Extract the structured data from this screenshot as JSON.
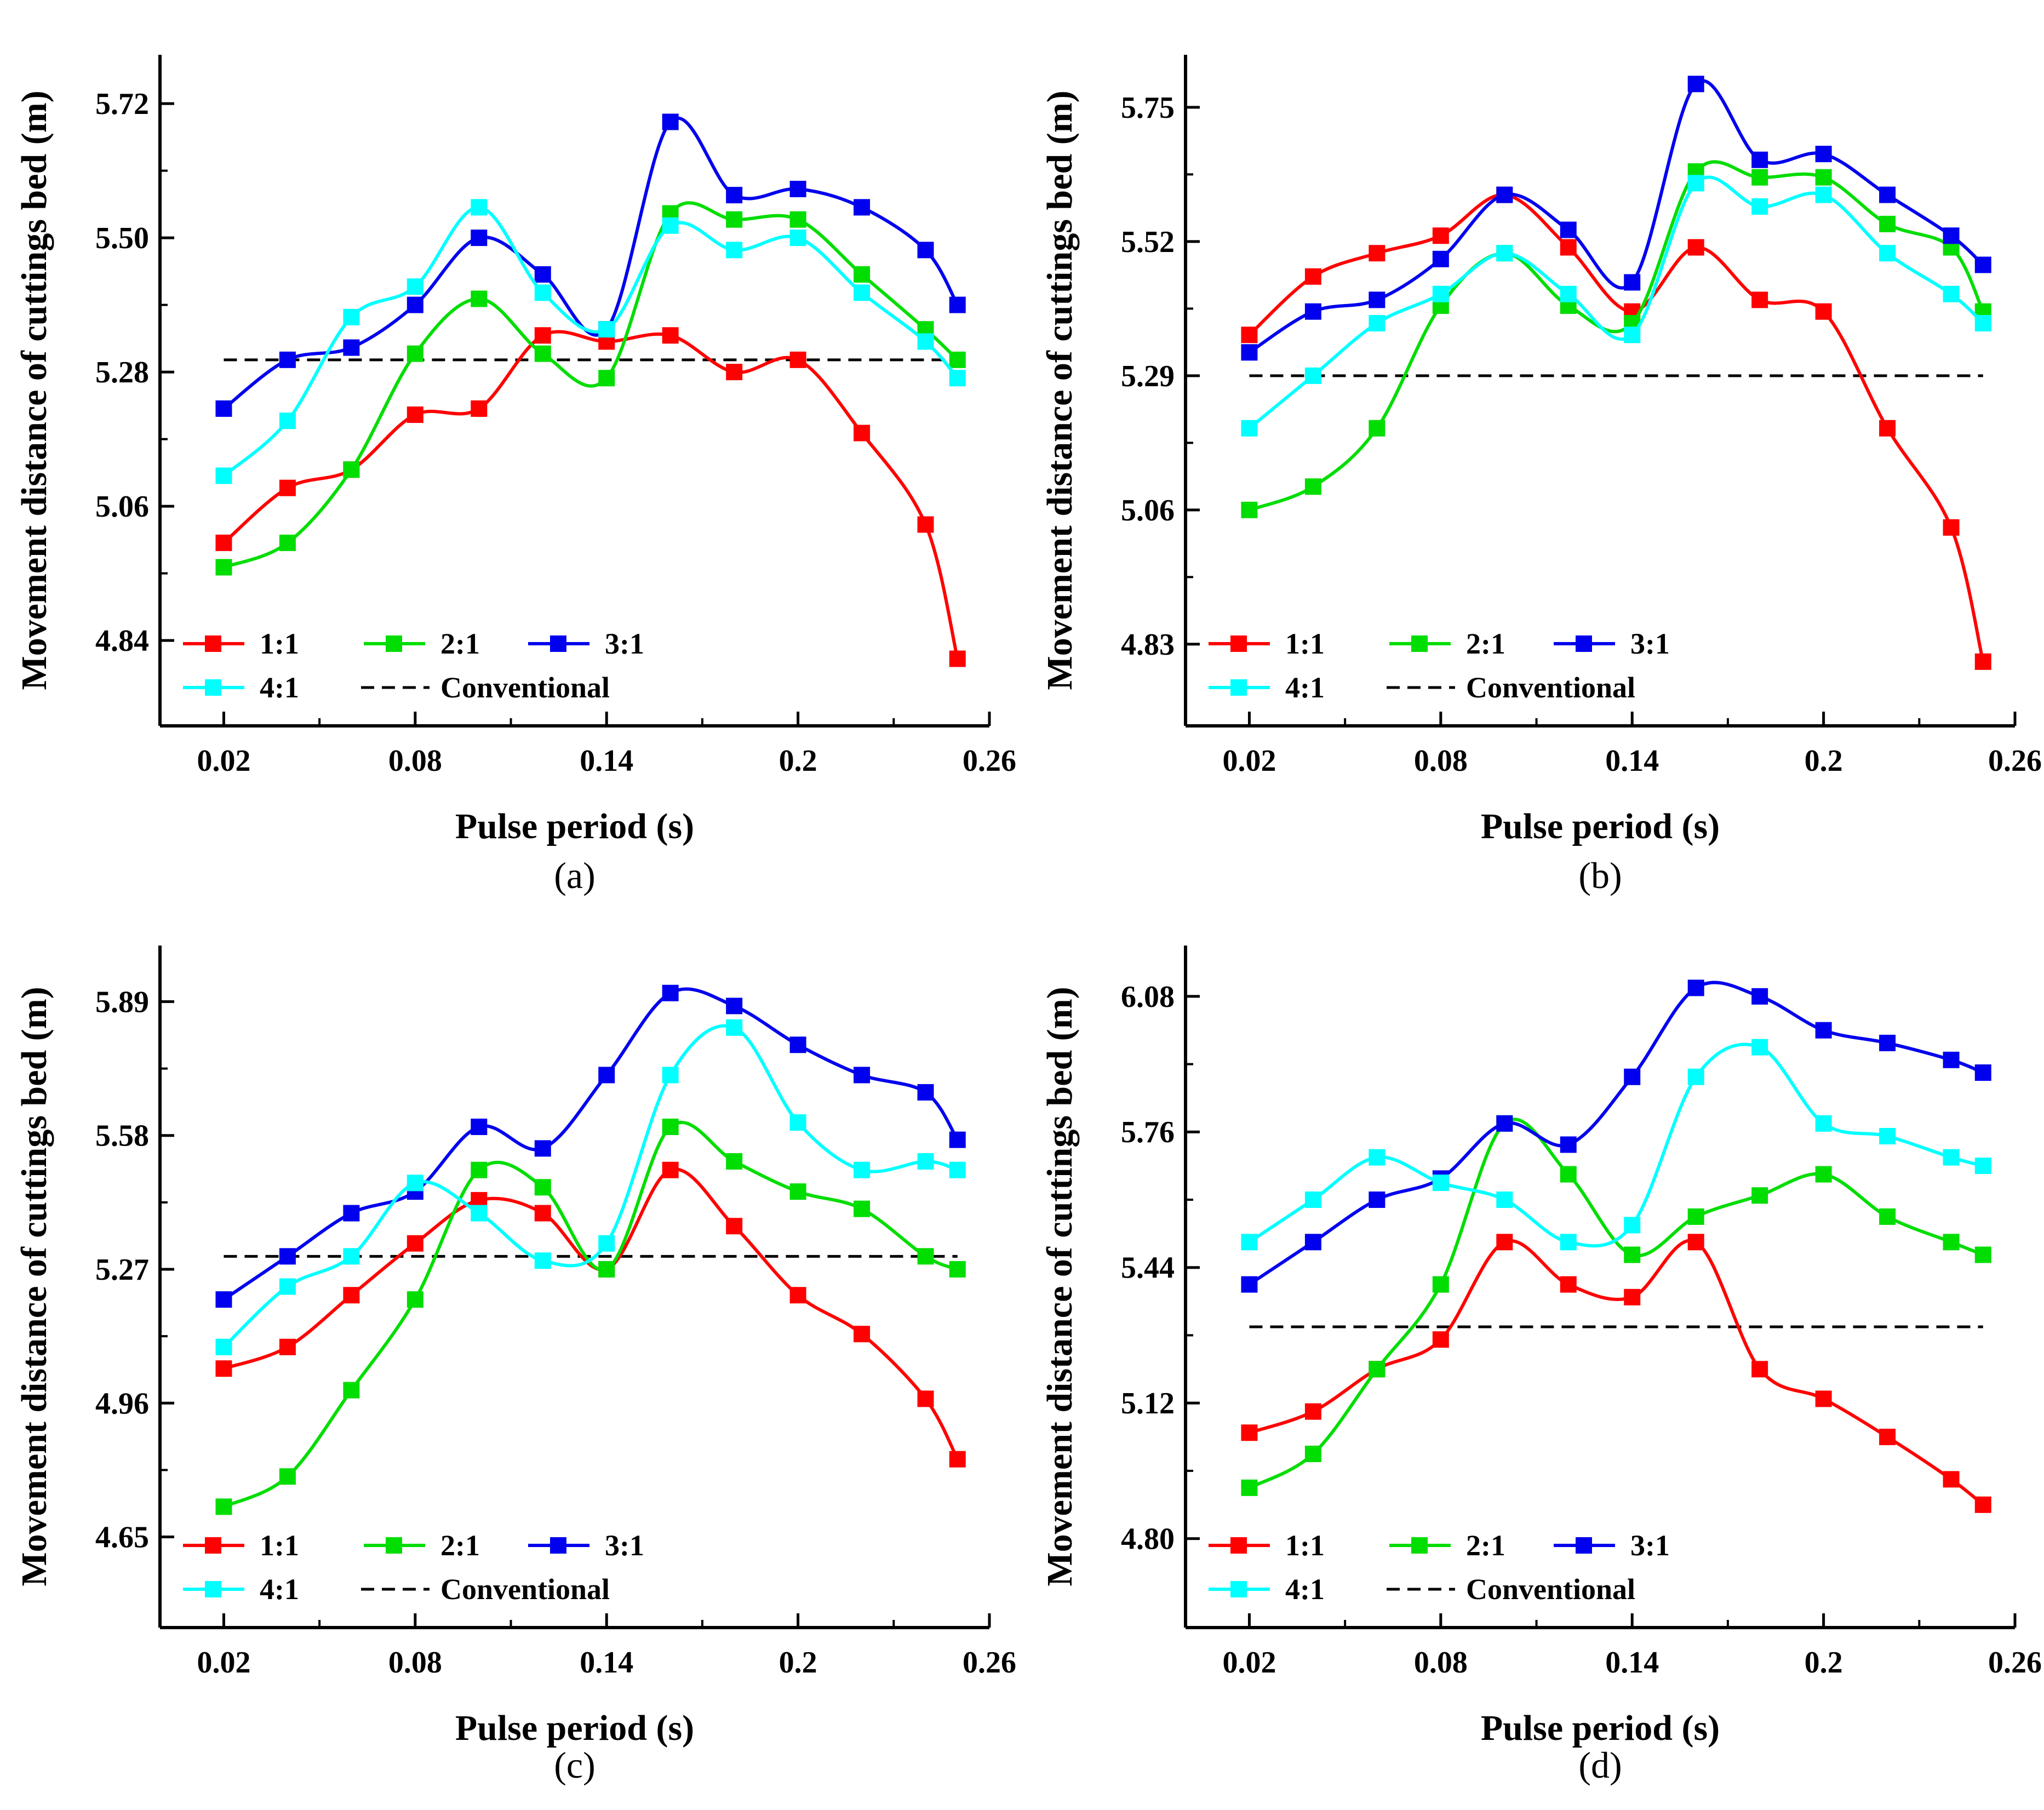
{
  "figure": {
    "panel_labels": [
      "(a)",
      "(b)",
      "(c)",
      "(d)"
    ]
  },
  "chart_data": [
    {
      "type": "line",
      "panel": "(a)",
      "xlabel": "Pulse period (s)",
      "ylabel": "Movement distance of cuttings bed (m)",
      "xlim": [
        0.0,
        0.26
      ],
      "ylim": [
        4.7,
        5.8
      ],
      "xticks": [
        0.02,
        0.08,
        0.14,
        0.2,
        0.26
      ],
      "xtick_labels": [
        "0.02",
        "0.08",
        "0.14",
        "0.2",
        "0.26"
      ],
      "yticks": [
        4.84,
        5.06,
        5.28,
        5.5,
        5.72
      ],
      "ytick_labels": [
        "4.84",
        "5.06",
        "5.28",
        "5.50",
        "5.72"
      ],
      "x": [
        0.02,
        0.04,
        0.06,
        0.08,
        0.1,
        0.12,
        0.14,
        0.16,
        0.18,
        0.2,
        0.22,
        0.24,
        0.25
      ],
      "series": [
        {
          "name": "1:1",
          "color": "#ff0000",
          "values": [
            5.0,
            5.09,
            5.12,
            5.21,
            5.22,
            5.34,
            5.33,
            5.34,
            5.28,
            5.3,
            5.18,
            5.03,
            4.81
          ]
        },
        {
          "name": "2:1",
          "color": "#00dd00",
          "values": [
            4.96,
            5.0,
            5.12,
            5.31,
            5.4,
            5.31,
            5.27,
            5.54,
            5.53,
            5.53,
            5.44,
            5.35,
            5.3
          ]
        },
        {
          "name": "3:1",
          "color": "#0000ee",
          "values": [
            5.22,
            5.3,
            5.32,
            5.39,
            5.5,
            5.44,
            5.35,
            5.69,
            5.57,
            5.58,
            5.55,
            5.48,
            5.39
          ]
        },
        {
          "name": "4:1",
          "color": "#00ffff",
          "values": [
            5.11,
            5.2,
            5.37,
            5.42,
            5.55,
            5.41,
            5.35,
            5.52,
            5.48,
            5.5,
            5.41,
            5.33,
            5.27
          ]
        }
      ],
      "reference": {
        "name": "Conventional",
        "value": 5.3,
        "color": "#000000"
      },
      "legend": {
        "placement": "lower-left",
        "entries": [
          "1:1",
          "2:1",
          "3:1",
          "4:1",
          "Conventional"
        ]
      }
    },
    {
      "type": "line",
      "panel": "(b)",
      "xlabel": "Pulse period (s)",
      "ylabel": "Movement distance of cuttings bed (m)",
      "xlim": [
        0.0,
        0.26
      ],
      "ylim": [
        4.69,
        5.84
      ],
      "xticks": [
        0.02,
        0.08,
        0.14,
        0.2,
        0.26
      ],
      "xtick_labels": [
        "0.02",
        "0.08",
        "0.14",
        "0.2",
        "0.26"
      ],
      "yticks": [
        4.83,
        5.06,
        5.29,
        5.52,
        5.75
      ],
      "ytick_labels": [
        "4.83",
        "5.06",
        "5.29",
        "5.52",
        "5.75"
      ],
      "x": [
        0.02,
        0.04,
        0.06,
        0.08,
        0.1,
        0.12,
        0.14,
        0.16,
        0.18,
        0.2,
        0.22,
        0.24,
        0.25
      ],
      "series": [
        {
          "name": "1:1",
          "color": "#ff0000",
          "values": [
            5.36,
            5.46,
            5.5,
            5.53,
            5.6,
            5.51,
            5.4,
            5.51,
            5.42,
            5.4,
            5.2,
            5.03,
            4.8
          ]
        },
        {
          "name": "2:1",
          "color": "#00dd00",
          "values": [
            5.06,
            5.1,
            5.2,
            5.41,
            5.5,
            5.41,
            5.38,
            5.64,
            5.63,
            5.63,
            5.55,
            5.51,
            5.4
          ]
        },
        {
          "name": "3:1",
          "color": "#0000ee",
          "values": [
            5.33,
            5.4,
            5.42,
            5.49,
            5.6,
            5.54,
            5.45,
            5.79,
            5.66,
            5.67,
            5.6,
            5.53,
            5.48
          ]
        },
        {
          "name": "4:1",
          "color": "#00ffff",
          "values": [
            5.2,
            5.29,
            5.38,
            5.43,
            5.5,
            5.43,
            5.36,
            5.62,
            5.58,
            5.6,
            5.5,
            5.43,
            5.38
          ]
        }
      ],
      "reference": {
        "name": "Conventional",
        "value": 5.29,
        "color": "#000000"
      },
      "legend": {
        "placement": "lower-left",
        "entries": [
          "1:1",
          "2:1",
          "3:1",
          "4:1",
          "Conventional"
        ]
      }
    },
    {
      "type": "line",
      "panel": "(c)",
      "xlabel": "Pulse period (s)",
      "ylabel": "Movement distance of cuttings bed (m)",
      "xlim": [
        0.0,
        0.26
      ],
      "ylim": [
        4.44,
        6.02
      ],
      "xticks": [
        0.02,
        0.08,
        0.14,
        0.2,
        0.26
      ],
      "xtick_labels": [
        "0.02",
        "0.08",
        "0.14",
        "0.2",
        "0.26"
      ],
      "yticks": [
        4.65,
        4.96,
        5.27,
        5.58,
        5.89
      ],
      "ytick_labels": [
        "4.65",
        "4.96",
        "5.27",
        "5.58",
        "5.89"
      ],
      "x": [
        0.02,
        0.04,
        0.06,
        0.08,
        0.1,
        0.12,
        0.14,
        0.16,
        0.18,
        0.2,
        0.22,
        0.24,
        0.25
      ],
      "series": [
        {
          "name": "1:1",
          "color": "#ff0000",
          "values": [
            5.04,
            5.09,
            5.21,
            5.33,
            5.43,
            5.4,
            5.27,
            5.5,
            5.37,
            5.21,
            5.12,
            4.97,
            4.83
          ]
        },
        {
          "name": "2:1",
          "color": "#00dd00",
          "values": [
            4.72,
            4.79,
            4.99,
            5.2,
            5.5,
            5.46,
            5.27,
            5.6,
            5.52,
            5.45,
            5.41,
            5.3,
            5.27
          ]
        },
        {
          "name": "3:1",
          "color": "#0000ee",
          "values": [
            5.2,
            5.3,
            5.4,
            5.45,
            5.6,
            5.55,
            5.72,
            5.91,
            5.88,
            5.79,
            5.72,
            5.68,
            5.57
          ]
        },
        {
          "name": "4:1",
          "color": "#00ffff",
          "values": [
            5.09,
            5.23,
            5.3,
            5.47,
            5.4,
            5.29,
            5.33,
            5.72,
            5.83,
            5.61,
            5.5,
            5.52,
            5.5
          ]
        }
      ],
      "reference": {
        "name": "Conventional",
        "value": 5.3,
        "color": "#000000"
      },
      "legend": {
        "placement": "lower-left",
        "entries": [
          "1:1",
          "2:1",
          "3:1",
          "4:1",
          "Conventional"
        ]
      }
    },
    {
      "type": "line",
      "panel": "(d)",
      "xlabel": "Pulse period (s)",
      "ylabel": "Movement distance of cuttings bed (m)",
      "xlim": [
        0.0,
        0.26
      ],
      "ylim": [
        4.59,
        6.2
      ],
      "xticks": [
        0.02,
        0.08,
        0.14,
        0.2,
        0.26
      ],
      "xtick_labels": [
        "0.02",
        "0.08",
        "0.14",
        "0.2",
        "0.26"
      ],
      "yticks": [
        4.8,
        5.12,
        5.44,
        5.76,
        6.08
      ],
      "ytick_labels": [
        "4.80",
        "5.12",
        "5.44",
        "5.76",
        "6.08"
      ],
      "x": [
        0.02,
        0.04,
        0.06,
        0.08,
        0.1,
        0.12,
        0.14,
        0.16,
        0.18,
        0.2,
        0.22,
        0.24,
        0.25
      ],
      "series": [
        {
          "name": "1:1",
          "color": "#ff0000",
          "values": [
            5.05,
            5.1,
            5.2,
            5.27,
            5.5,
            5.4,
            5.37,
            5.5,
            5.2,
            5.13,
            5.04,
            4.94,
            4.88
          ]
        },
        {
          "name": "2:1",
          "color": "#00dd00",
          "values": [
            4.92,
            5.0,
            5.2,
            5.4,
            5.78,
            5.66,
            5.47,
            5.56,
            5.61,
            5.66,
            5.56,
            5.5,
            5.47
          ]
        },
        {
          "name": "3:1",
          "color": "#0000ee",
          "values": [
            5.4,
            5.5,
            5.6,
            5.65,
            5.78,
            5.73,
            5.89,
            6.1,
            6.08,
            6.0,
            5.97,
            5.93,
            5.9
          ]
        },
        {
          "name": "4:1",
          "color": "#00ffff",
          "values": [
            5.5,
            5.6,
            5.7,
            5.64,
            5.6,
            5.5,
            5.54,
            5.89,
            5.96,
            5.78,
            5.75,
            5.7,
            5.68
          ]
        }
      ],
      "reference": {
        "name": "Conventional",
        "value": 5.3,
        "color": "#000000"
      },
      "legend": {
        "placement": "lower-left",
        "entries": [
          "1:1",
          "2:1",
          "3:1",
          "4:1",
          "Conventional"
        ]
      }
    }
  ]
}
